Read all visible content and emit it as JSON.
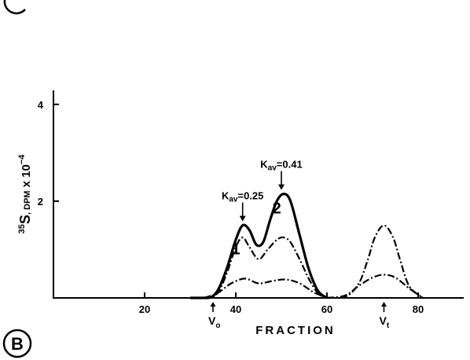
{
  "chart_data": {
    "type": "line",
    "panel_label": "B",
    "xlabel": "FRACTION",
    "ylabel": {
      "superscript": "35",
      "main": "S",
      "sub": ", DPM",
      "mult": " x 10",
      "exp": "−4"
    },
    "xlim": [
      0,
      90
    ],
    "ylim": [
      0,
      4.5
    ],
    "xticks": [
      20,
      40,
      60,
      80
    ],
    "yticks": [
      2,
      4
    ],
    "markers": [
      {
        "label": "V",
        "sub": "o",
        "x": 35
      },
      {
        "label": "V",
        "sub": "t",
        "x": 72.5
      }
    ],
    "annotations": [
      {
        "label": "K",
        "sub": "av",
        "text": "=0.25",
        "x": 41.5,
        "y": 1.55
      },
      {
        "label": "K",
        "sub": "av",
        "text": "=0.41",
        "x": 50,
        "y": 2.2
      }
    ],
    "curve_labels": [
      {
        "text": "1",
        "x": 40,
        "y": 0.9
      },
      {
        "text": "2",
        "x": 49,
        "y": 1.75
      }
    ],
    "series": [
      {
        "style": "solid",
        "x": [
          30,
          34,
          36,
          38,
          40,
          41.5,
          43,
          44.5,
          46,
          47.5,
          49,
          50.5,
          52,
          54,
          56,
          58,
          60
        ],
        "y": [
          0,
          0,
          0.15,
          0.6,
          1.2,
          1.5,
          1.4,
          1.1,
          1.15,
          1.6,
          2.0,
          2.15,
          2.0,
          1.3,
          0.6,
          0.15,
          0
        ]
      },
      {
        "style": "dash-dot",
        "x": [
          30,
          34,
          36,
          38,
          40,
          41.5,
          43,
          45,
          47,
          49,
          50.5,
          52,
          54,
          56,
          58,
          60
        ],
        "y": [
          0,
          0,
          0.1,
          0.5,
          1.05,
          1.25,
          1.05,
          0.8,
          1.0,
          1.2,
          1.25,
          1.15,
          0.8,
          0.4,
          0.1,
          0
        ]
      },
      {
        "style": "dash-dot",
        "x": [
          33,
          36,
          39,
          42,
          45,
          48,
          51,
          54,
          57,
          60
        ],
        "y": [
          0,
          0.1,
          0.3,
          0.4,
          0.3,
          0.35,
          0.38,
          0.3,
          0.12,
          0
        ]
      },
      {
        "style": "dash-dot",
        "x": [
          60,
          64,
          67,
          69,
          70.5,
          72.5,
          74.5,
          76,
          78,
          81
        ],
        "y": [
          0,
          0.02,
          0.3,
          0.8,
          1.25,
          1.5,
          1.25,
          0.8,
          0.25,
          0
        ]
      },
      {
        "style": "dash-dot",
        "x": [
          60,
          64,
          67,
          70,
          72.5,
          75,
          78,
          81
        ],
        "y": [
          0,
          0.05,
          0.25,
          0.42,
          0.48,
          0.42,
          0.2,
          0
        ]
      }
    ]
  }
}
